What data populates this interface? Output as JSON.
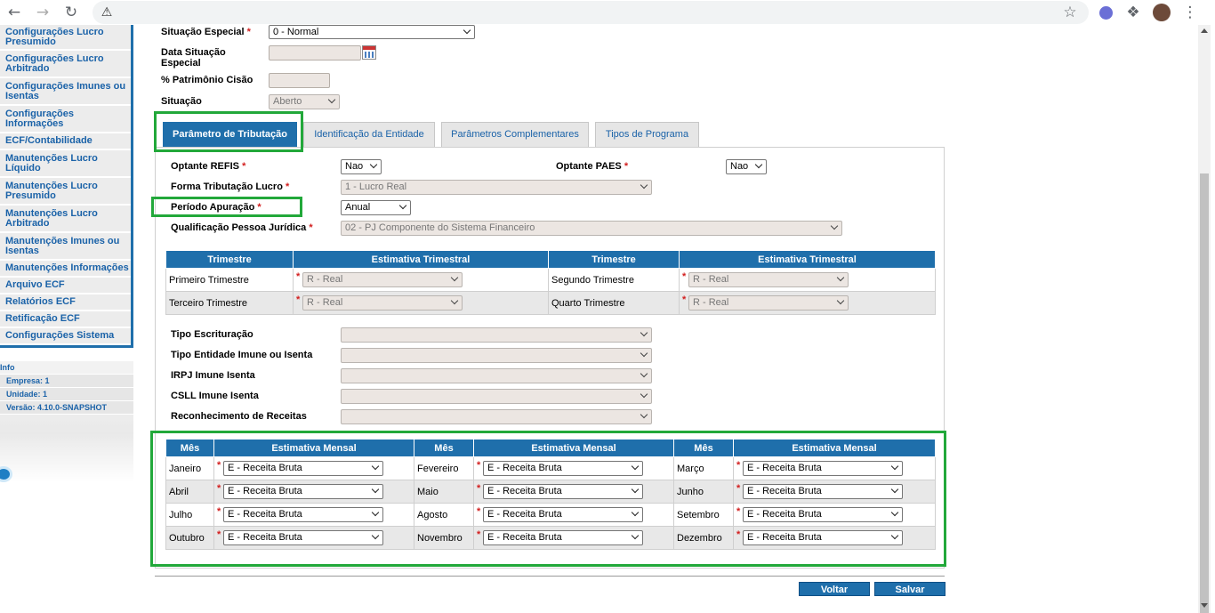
{
  "browser": {
    "back_icon": "arrow-left-icon",
    "forward_icon": "arrow-right-icon",
    "reload_icon": "reload-icon",
    "warning_icon": "warning-icon"
  },
  "sidebar": {
    "items": [
      "Configurações Lucro Presumido",
      "Configurações Lucro Arbitrado",
      "Configurações Imunes ou Isentas",
      "Configurações Informações",
      "ECF/Contabilidade",
      "Manutenções Lucro Líquido",
      "Manutenções Lucro Presumido",
      "Manutenções Lucro Arbitrado",
      "Manutenções Imunes ou Isentas",
      "Manutenções Informações",
      "Arquivo ECF",
      "Relatórios ECF",
      "Retificação ECF",
      "Configurações Sistema"
    ],
    "info_title": "Info",
    "empresa": "Empresa: 1",
    "unidade": "Unidade: 1",
    "versao": "Versão: 4.10.0-SNAPSHOT"
  },
  "header_fields": {
    "situacao_especial_label": "Situação Especial",
    "situacao_especial_value": "0 - Normal",
    "data_situacao_label_1": "Data Situação",
    "data_situacao_label_2": "Especial",
    "patrimonio_label": "% Patrimônio Cisão",
    "situacao_label": "Situação",
    "situacao_value": "Aberto"
  },
  "tabs": [
    "Parâmetro de Tributação",
    "Identificação da Entidade",
    "Parâmetros Complementares",
    "Tipos de Programa"
  ],
  "form": {
    "optante_refis_label": "Optante REFIS",
    "optante_refis_value": "Nao",
    "optante_paes_label": "Optante PAES",
    "optante_paes_value": "Nao",
    "forma_tributacao_label": "Forma Tributação Lucro",
    "forma_tributacao_value": "1 - Lucro Real",
    "periodo_apuracao_label": "Período Apuração",
    "periodo_apuracao_value": "Anual",
    "qualificacao_label": "Qualificação Pessoa Jurídica",
    "qualificacao_value": "02 - PJ Componente do Sistema Financeiro",
    "tipo_escrituracao_label": "Tipo Escrituração",
    "tipo_entidade_label": "Tipo Entidade Imune ou Isenta",
    "irpj_label": "IRPJ Imune Isenta",
    "csll_label": "CSLL Imune Isenta",
    "reconhecimento_label": "Reconhecimento de Receitas",
    "required_mark": "*"
  },
  "trimestral": {
    "headers": [
      "Trimestre",
      "Estimativa Trimestral",
      "Trimestre",
      "Estimativa Trimestral"
    ],
    "rows": [
      {
        "t1": "Primeiro Trimestre",
        "v1": "R - Real",
        "t2": "Segundo Trimestre",
        "v2": "R - Real"
      },
      {
        "t1": "Terceiro Trimestre",
        "v1": "R - Real",
        "t2": "Quarto Trimestre",
        "v2": "R - Real"
      }
    ]
  },
  "mensal": {
    "headers": [
      "Mês",
      "Estimativa Mensal",
      "Mês",
      "Estimativa Mensal",
      "Mês",
      "Estimativa Mensal"
    ],
    "rows": [
      {
        "m1": "Janeiro",
        "v1": "E - Receita Bruta",
        "m2": "Fevereiro",
        "v2": "E - Receita Bruta",
        "m3": "Março",
        "v3": "E - Receita Bruta"
      },
      {
        "m1": "Abril",
        "v1": "E - Receita Bruta",
        "m2": "Maio",
        "v2": "E - Receita Bruta",
        "m3": "Junho",
        "v3": "E - Receita Bruta"
      },
      {
        "m1": "Julho",
        "v1": "E - Receita Bruta",
        "m2": "Agosto",
        "v2": "E - Receita Bruta",
        "m3": "Setembro",
        "v3": "E - Receita Bruta"
      },
      {
        "m1": "Outubro",
        "v1": "E - Receita Bruta",
        "m2": "Novembro",
        "v2": "E - Receita Bruta",
        "m3": "Dezembro",
        "v3": "E - Receita Bruta"
      }
    ]
  },
  "buttons": {
    "voltar": "Voltar",
    "salvar": "Salvar"
  },
  "colors": {
    "accent": "#1f6fab",
    "highlight": "#22a83a",
    "required": "#d21e1e"
  }
}
